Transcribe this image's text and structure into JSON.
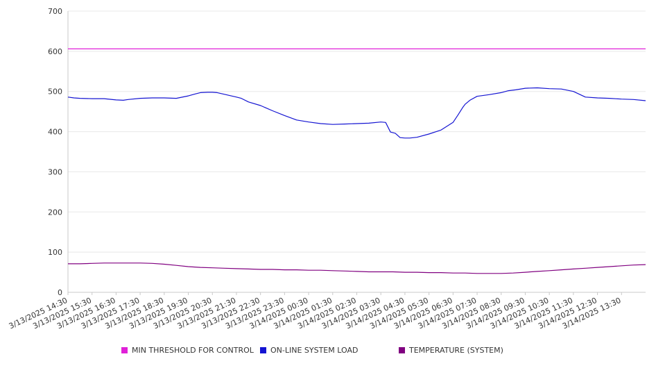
{
  "chart_data": {
    "type": "line",
    "title": "",
    "xlabel": "",
    "ylabel": "",
    "ylim": [
      0,
      700
    ],
    "yticks": [
      "0",
      "100",
      "200",
      "300",
      "400",
      "500",
      "600",
      "700"
    ],
    "grid": true,
    "legend_position": "bottom",
    "x_tick_labels": [
      "3/13/2025 14:30",
      "3/13/2025 15:30",
      "3/13/2025 16:30",
      "3/13/2025 17:30",
      "3/13/2025 18:30",
      "3/13/2025 19:30",
      "3/13/2025 20:30",
      "3/13/2025 21:30",
      "3/13/2025 22:30",
      "3/13/2025 23:30",
      "3/14/2025 00:30",
      "3/14/2025 01:30",
      "3/14/2025 02:30",
      "3/14/2025 03:30",
      "3/14/2025 04:30",
      "3/14/2025 05:30",
      "3/14/2025 06:30",
      "3/14/2025 07:30",
      "3/14/2025 08:30",
      "3/14/2025 09:30",
      "3/14/2025 10:30",
      "3/14/2025 11:30",
      "3/14/2025 12:30",
      "3/14/2025 13:30"
    ],
    "x_tick_positions": [
      0,
      1,
      2,
      3,
      4,
      5,
      6,
      7,
      8,
      9,
      10,
      11,
      12,
      13,
      14,
      15,
      16,
      17,
      18,
      19,
      20,
      21,
      22,
      23
    ],
    "x_range": [
      0,
      24
    ],
    "series": [
      {
        "name": "MIN THRESHOLD FOR CONTROL",
        "color": "#e020d8",
        "x": [
          0,
          24
        ],
        "y": [
          606,
          606
        ]
      },
      {
        "name": "ON-LINE SYSTEM LOAD",
        "color": "#1414d2",
        "x": [
          0,
          0.25,
          0.5,
          1,
          1.5,
          2,
          2.3,
          2.5,
          3,
          3.5,
          4,
          4.5,
          5,
          5.3,
          5.5,
          5.8,
          6,
          6.2,
          6.5,
          7,
          7.2,
          7.5,
          8,
          8.5,
          9,
          9.5,
          10,
          10.5,
          11,
          11.5,
          12,
          12.5,
          13,
          13.2,
          13.4,
          13.6,
          13.8,
          14,
          14.2,
          14.5,
          15,
          15.5,
          16,
          16.2,
          16.4,
          16.5,
          16.7,
          17,
          17.5,
          18,
          18.3,
          18.6,
          19,
          19.5,
          20,
          20.5,
          21,
          21.5,
          22,
          22.5,
          23,
          23.5,
          24
        ],
        "y": [
          486,
          484,
          483,
          482,
          482,
          479,
          478,
          480,
          483,
          484,
          484,
          483,
          489,
          494,
          497,
          498,
          498,
          497,
          493,
          486,
          483,
          474,
          465,
          452,
          440,
          429,
          424,
          420,
          418,
          419,
          420,
          421,
          424,
          423,
          399,
          396,
          385,
          384,
          384,
          386,
          394,
          404,
          423,
          441,
          460,
          468,
          478,
          488,
          492,
          497,
          502,
          504,
          508,
          509,
          507,
          506,
          500,
          486,
          484,
          483,
          481,
          480,
          477
        ]
      },
      {
        "name": "TEMPERATURE (SYSTEM)",
        "color": "#800080",
        "x": [
          0,
          0.5,
          1,
          1.5,
          2,
          2.5,
          3,
          3.5,
          4,
          4.5,
          5,
          5.5,
          6,
          6.5,
          7,
          7.5,
          8,
          8.5,
          9,
          9.5,
          10,
          10.5,
          11,
          11.5,
          12,
          12.5,
          13,
          13.5,
          14,
          14.5,
          15,
          15.5,
          16,
          16.5,
          17,
          17.5,
          18,
          18.5,
          19,
          19.5,
          20,
          20.5,
          21,
          21.5,
          22,
          22.5,
          23,
          23.5,
          24
        ],
        "y": [
          71,
          71,
          72,
          73,
          73,
          73,
          73,
          72,
          70,
          67,
          64,
          62,
          61,
          60,
          59,
          58,
          57,
          57,
          56,
          56,
          55,
          55,
          54,
          53,
          52,
          51,
          51,
          51,
          50,
          50,
          49,
          49,
          48,
          48,
          47,
          47,
          47,
          48,
          50,
          52,
          54,
          56,
          58,
          60,
          62,
          64,
          66,
          68,
          69
        ]
      }
    ]
  }
}
